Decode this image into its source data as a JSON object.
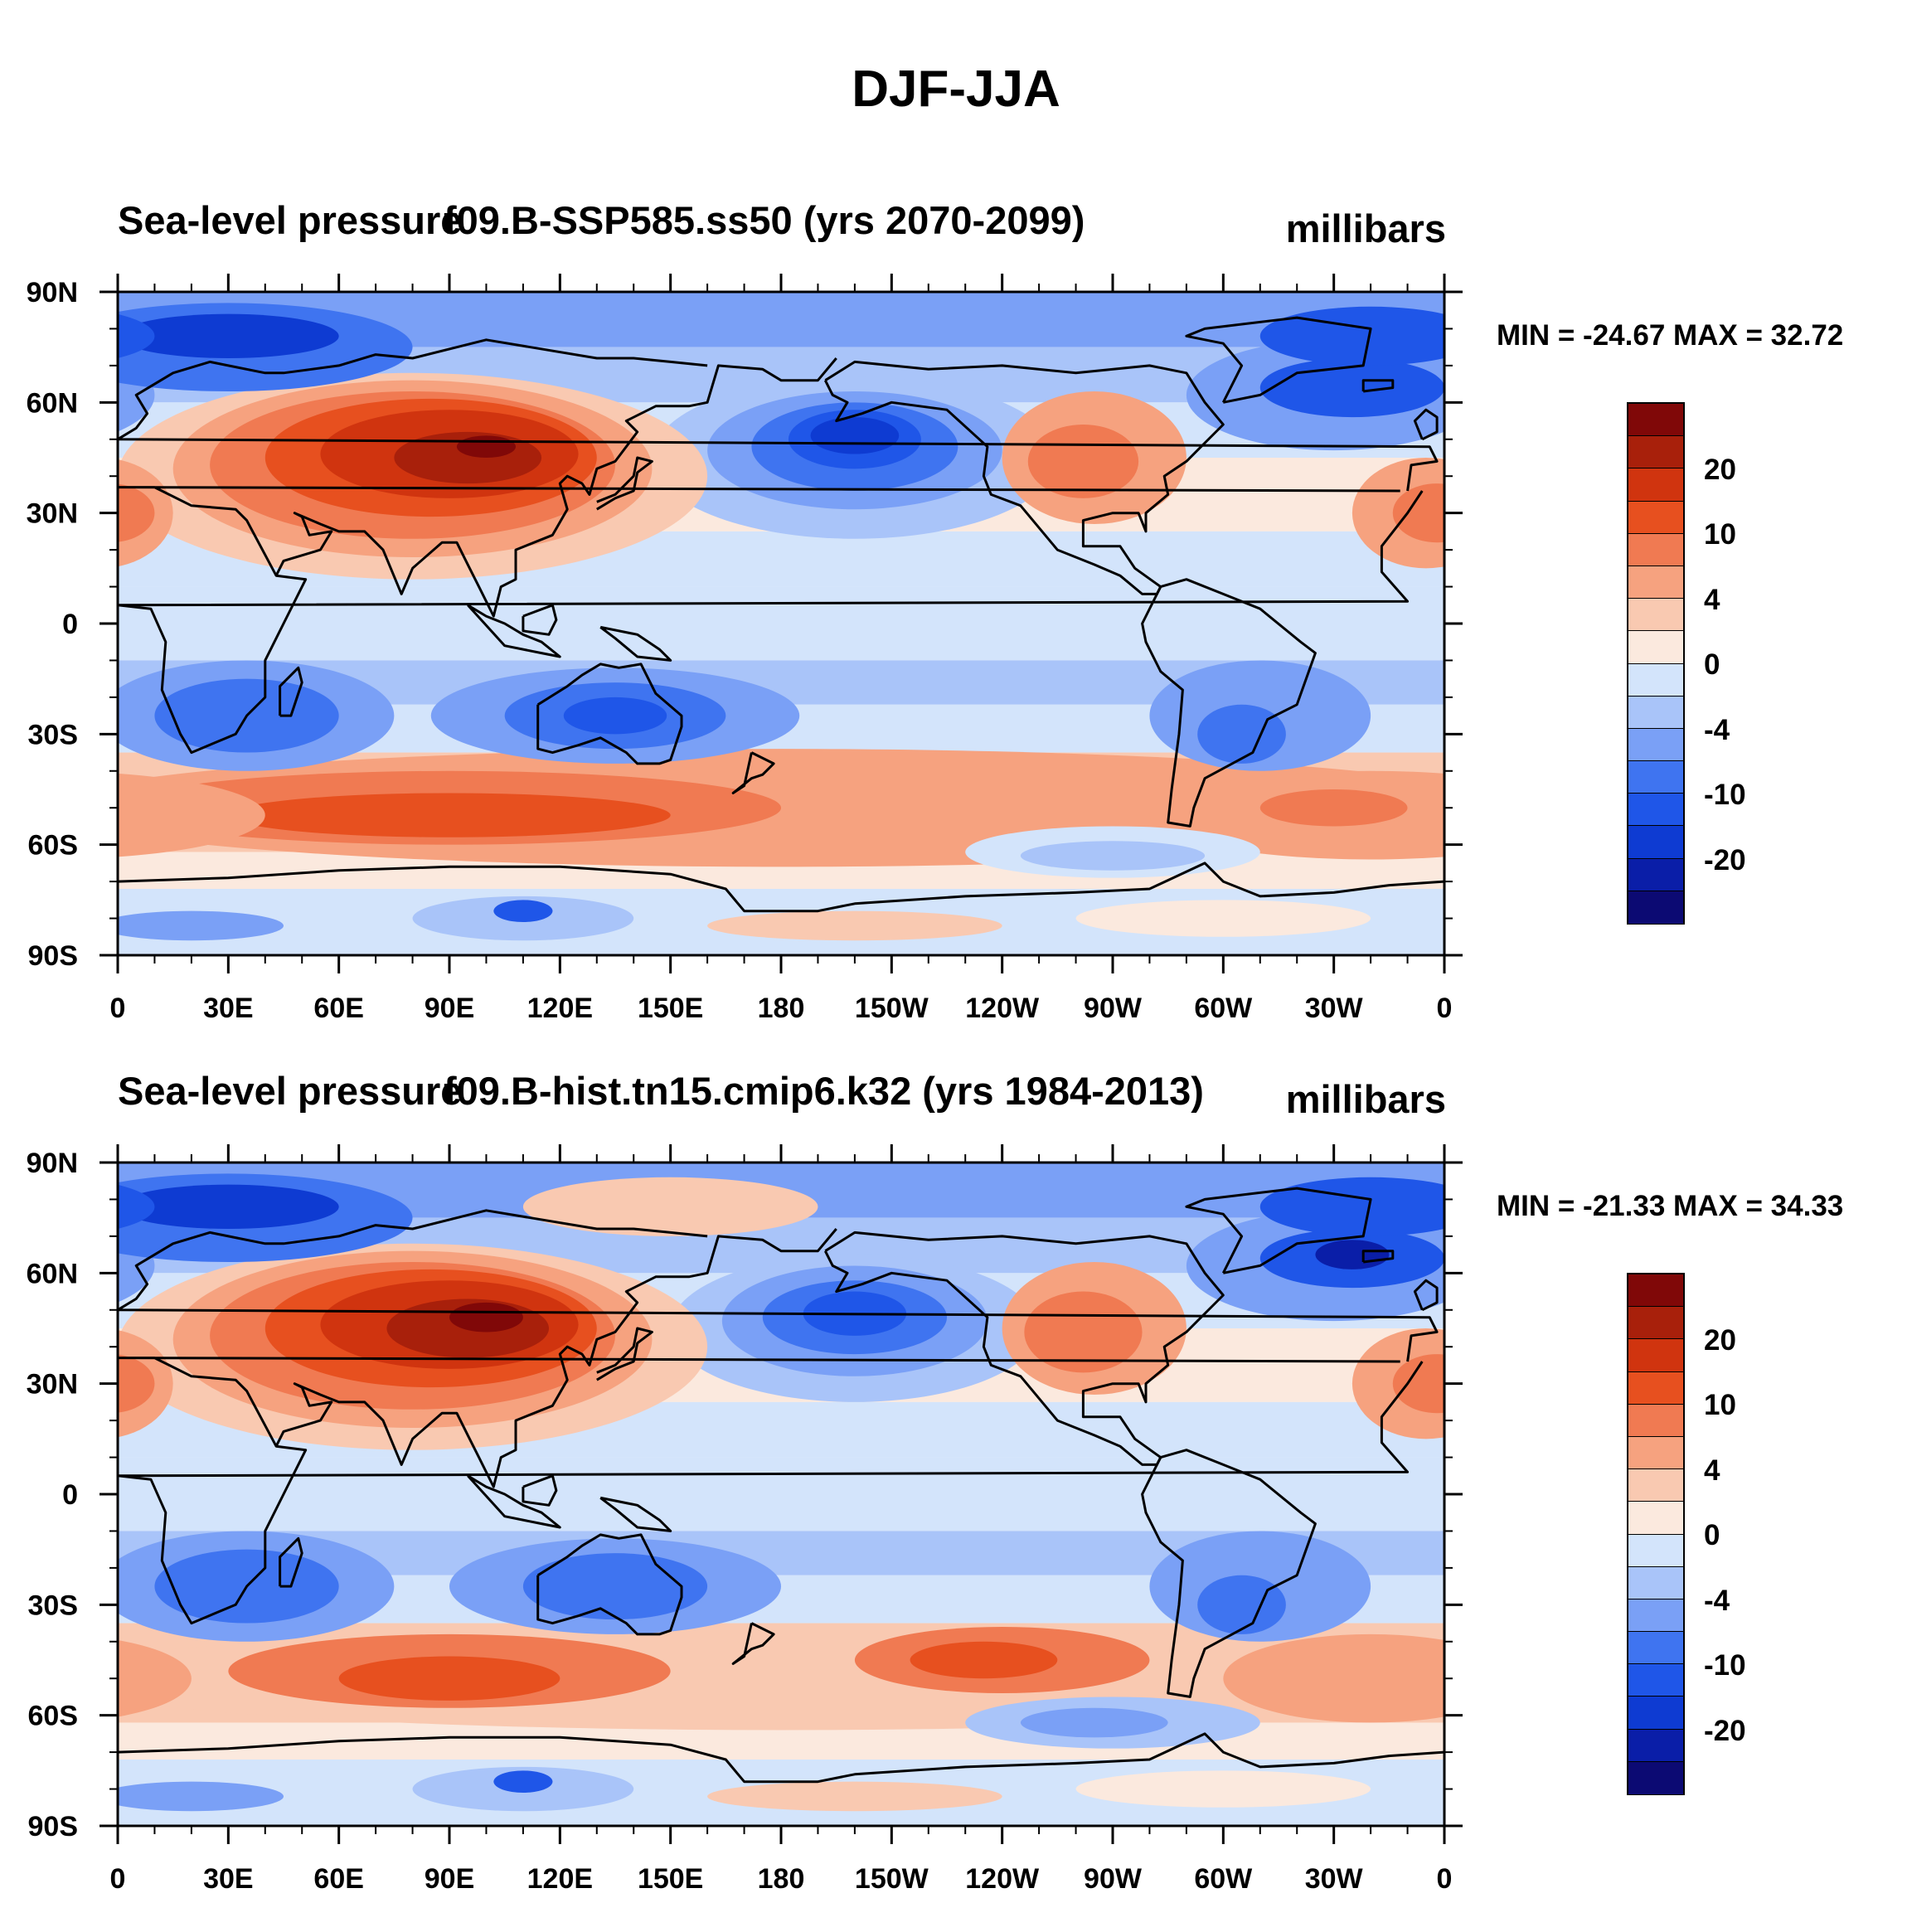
{
  "figure": {
    "title": "DJF-JJA"
  },
  "colors": {
    "levels": [
      "#0c0a73",
      "#0a1ea8",
      "#0e3bd2",
      "#1f56e8",
      "#3f74f0",
      "#7aa0f6",
      "#a9c4f9",
      "#d3e4fb",
      "#fbe9de",
      "#f9c9b1",
      "#f6a27f",
      "#f07a52",
      "#e7501f",
      "#d0340f",
      "#a8200b",
      "#800808"
    ],
    "coast": "#000000"
  },
  "panels": [
    {
      "left_title": "Sea-level pressure",
      "center_title": "f09.B-SSP585.ss50 (yrs 2070-2099)",
      "units": "millibars",
      "stats": "MIN = -24.67 MAX =  32.72"
    },
    {
      "left_title": "Sea-level pressure",
      "center_title": "f09.B-hist.tn15.cmip6.k32 (yrs 1984-2013)",
      "units": "millibars",
      "stats": "MIN = -21.33 MAX =  34.33"
    }
  ],
  "colorbar": {
    "labels": [
      "20",
      "10",
      "4",
      "0",
      "-4",
      "-10",
      "-20"
    ]
  },
  "axes": {
    "lon_labels": [
      "0",
      "30E",
      "60E",
      "90E",
      "120E",
      "150E",
      "180",
      "150W",
      "120W",
      "90W",
      "60W",
      "30W",
      "0"
    ],
    "lat_labels": [
      "90N",
      "60N",
      "30N",
      "0",
      "30S",
      "60S",
      "90S"
    ]
  }
}
